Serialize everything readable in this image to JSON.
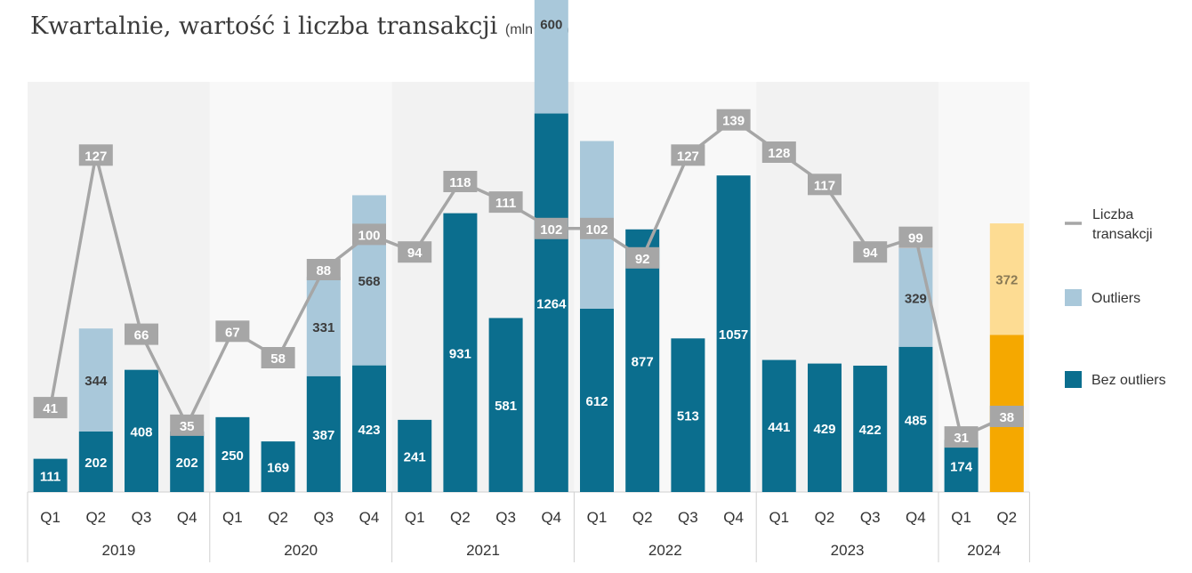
{
  "chart_data": {
    "type": "bar",
    "title": "Kwartalnie, wartość i liczba transakcji",
    "unit": "(mln PLN)",
    "years": [
      "2019",
      "2020",
      "2021",
      "2022",
      "2023",
      "2024"
    ],
    "quarters_per_year": [
      4,
      4,
      4,
      4,
      4,
      2
    ],
    "categories": [
      "Q1",
      "Q2",
      "Q3",
      "Q4",
      "Q1",
      "Q2",
      "Q3",
      "Q4",
      "Q1",
      "Q2",
      "Q3",
      "Q4",
      "Q1",
      "Q2",
      "Q3",
      "Q4",
      "Q1",
      "Q2",
      "Q3",
      "Q4",
      "Q1",
      "Q2"
    ],
    "ylim": [
      0,
      1900
    ],
    "series": [
      {
        "name": "Bez outliers",
        "type": "bar",
        "stack": "value",
        "values": [
          111,
          202,
          408,
          202,
          250,
          169,
          387,
          423,
          241,
          931,
          581,
          1264,
          612,
          877,
          513,
          1057,
          441,
          429,
          422,
          485,
          174,
          525
        ]
      },
      {
        "name": "Outliers",
        "type": "bar",
        "stack": "value",
        "values": [
          null,
          344,
          null,
          null,
          null,
          null,
          331,
          568,
          null,
          null,
          null,
          600,
          560,
          null,
          null,
          null,
          null,
          null,
          null,
          329,
          null,
          372
        ]
      },
      {
        "name": "Liczba transakcji",
        "type": "line",
        "axis": "secondary",
        "values": [
          41,
          127,
          66,
          35,
          67,
          58,
          88,
          100,
          94,
          118,
          111,
          102,
          102,
          92,
          127,
          139,
          128,
          117,
          94,
          99,
          31,
          38
        ]
      }
    ],
    "secondary_ylim": [
      0,
      155
    ],
    "highlight_last": true,
    "colors": {
      "bez_outliers": "#0b6e8e",
      "outliers": "#a9c8da",
      "line": "#a6a6a6",
      "highlight_bar": "#f5a800",
      "highlight_outlier": "#fddc93",
      "band_dark": "#f2f2f2",
      "band_light": "#f8f8f8"
    },
    "legend": {
      "placement": "right"
    }
  }
}
